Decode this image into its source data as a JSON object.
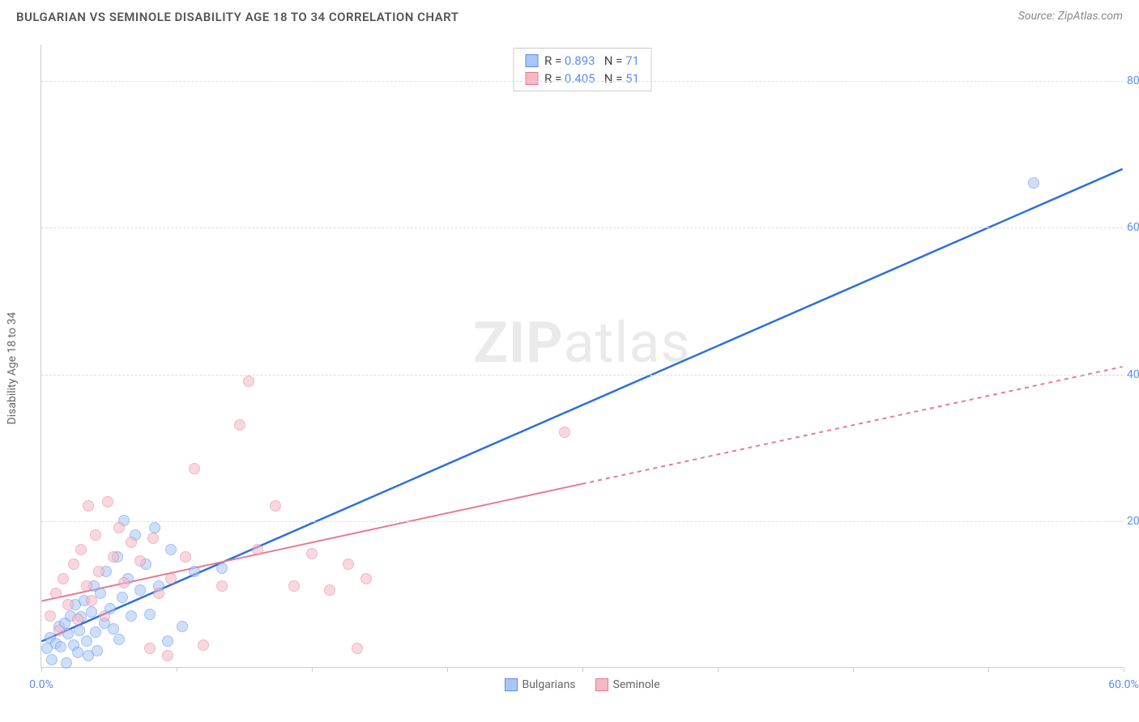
{
  "header": {
    "title": "BULGARIAN VS SEMINOLE DISABILITY AGE 18 TO 34 CORRELATION CHART",
    "source": "Source: ZipAtlas.com"
  },
  "watermark": {
    "zip": "ZIP",
    "atlas": "atlas"
  },
  "chart": {
    "type": "scatter",
    "background_color": "#ffffff",
    "grid_color": "#dddddd",
    "axis_color": "#cccccc",
    "text_color": "#666666",
    "tick_label_color": "#5b8def",
    "y_axis_label": "Disability Age 18 to 34",
    "xlim": [
      0,
      60
    ],
    "ylim": [
      0,
      85
    ],
    "x_ticks": [
      0,
      60
    ],
    "x_tick_labels": [
      "0.0%",
      "60.0%"
    ],
    "x_minor_ticks": [
      0,
      7.5,
      15,
      22.5,
      30,
      37.5,
      45,
      52.5,
      60
    ],
    "y_ticks": [
      20,
      40,
      60,
      80
    ],
    "y_tick_labels": [
      "20.0%",
      "40.0%",
      "60.0%",
      "80.0%"
    ],
    "marker_radius": 7,
    "marker_stroke_width": 1,
    "series": [
      {
        "name": "Bulgarians",
        "fill_color": "#a9c6f5",
        "stroke_color": "#5b8def",
        "fill_opacity": 0.55,
        "line_color": "#2d6fe0",
        "line_width": 2.5,
        "line_dash": "none",
        "regression": {
          "x1": 0,
          "y1": 3.5,
          "x2": 60,
          "y2": 68,
          "solid_until_x": 60
        },
        "stats": {
          "R": "0.893",
          "N": "71"
        },
        "points": [
          [
            0.3,
            2.5
          ],
          [
            0.5,
            4
          ],
          [
            0.6,
            1
          ],
          [
            0.8,
            3.2
          ],
          [
            1,
            5.5
          ],
          [
            1.1,
            2.8
          ],
          [
            1.3,
            6
          ],
          [
            1.4,
            0.5
          ],
          [
            1.5,
            4.5
          ],
          [
            1.6,
            7
          ],
          [
            1.8,
            3
          ],
          [
            1.9,
            8.5
          ],
          [
            2,
            2
          ],
          [
            2.1,
            5
          ],
          [
            2.2,
            6.8
          ],
          [
            2.4,
            9
          ],
          [
            2.5,
            3.5
          ],
          [
            2.6,
            1.5
          ],
          [
            2.8,
            7.5
          ],
          [
            2.9,
            11
          ],
          [
            3,
            4.8
          ],
          [
            3.1,
            2.2
          ],
          [
            3.3,
            10
          ],
          [
            3.5,
            6
          ],
          [
            3.6,
            13
          ],
          [
            3.8,
            8
          ],
          [
            4,
            5.2
          ],
          [
            4.2,
            15
          ],
          [
            4.3,
            3.8
          ],
          [
            4.5,
            9.5
          ],
          [
            4.6,
            20
          ],
          [
            4.8,
            12
          ],
          [
            5,
            7
          ],
          [
            5.2,
            18
          ],
          [
            5.5,
            10.5
          ],
          [
            5.8,
            14
          ],
          [
            6,
            7.2
          ],
          [
            6.3,
            19
          ],
          [
            6.5,
            11
          ],
          [
            7,
            3.5
          ],
          [
            7.2,
            16
          ],
          [
            7.8,
            5.5
          ],
          [
            8.5,
            13
          ],
          [
            10,
            13.5
          ],
          [
            55,
            66
          ]
        ]
      },
      {
        "name": "Seminole",
        "fill_color": "#f5b8c5",
        "stroke_color": "#e77b94",
        "fill_opacity": 0.55,
        "line_color": "#e77b94",
        "line_width": 2,
        "line_dash": "5,5",
        "regression": {
          "x1": 0,
          "y1": 9,
          "x2": 60,
          "y2": 41,
          "solid_until_x": 30
        },
        "stats": {
          "R": "0.405",
          "N": "51"
        },
        "points": [
          [
            0.5,
            7
          ],
          [
            0.8,
            10
          ],
          [
            1,
            5
          ],
          [
            1.2,
            12
          ],
          [
            1.5,
            8.5
          ],
          [
            1.8,
            14
          ],
          [
            2,
            6.5
          ],
          [
            2.2,
            16
          ],
          [
            2.5,
            11
          ],
          [
            2.6,
            22
          ],
          [
            2.8,
            9
          ],
          [
            3,
            18
          ],
          [
            3.2,
            13
          ],
          [
            3.5,
            7
          ],
          [
            3.7,
            22.5
          ],
          [
            4,
            15
          ],
          [
            4.3,
            19
          ],
          [
            4.6,
            11.5
          ],
          [
            5,
            17
          ],
          [
            5.5,
            14.5
          ],
          [
            6,
            2.5
          ],
          [
            6.2,
            17.5
          ],
          [
            6.5,
            10
          ],
          [
            7,
            1.5
          ],
          [
            7.2,
            12
          ],
          [
            8,
            15
          ],
          [
            8.5,
            27
          ],
          [
            9,
            3
          ],
          [
            10,
            11
          ],
          [
            11,
            33
          ],
          [
            11.5,
            39
          ],
          [
            12,
            16
          ],
          [
            13,
            22
          ],
          [
            14,
            11
          ],
          [
            15,
            15.5
          ],
          [
            16,
            10.5
          ],
          [
            17,
            14
          ],
          [
            17.5,
            2.5
          ],
          [
            18,
            12
          ],
          [
            29,
            32
          ]
        ]
      }
    ],
    "stats_box": {
      "R_label": "R  =",
      "N_label": "N  ="
    },
    "legend_bottom": [
      {
        "label": "Bulgarians",
        "fill": "#a9c6f5",
        "stroke": "#5b8def"
      },
      {
        "label": "Seminole",
        "fill": "#f5b8c5",
        "stroke": "#e77b94"
      }
    ]
  }
}
